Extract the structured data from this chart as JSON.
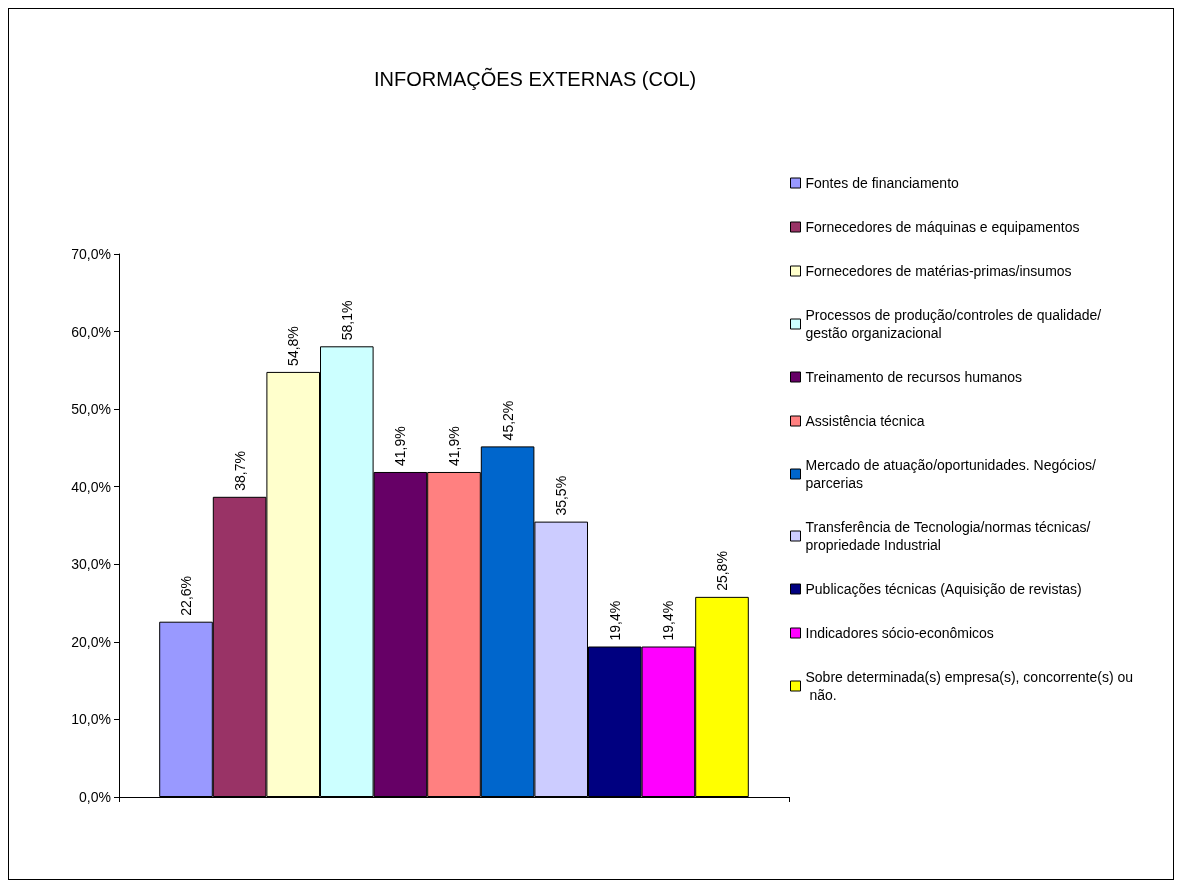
{
  "chart_data": {
    "type": "bar",
    "title": "INFORMAÇÕES EXTERNAS (COL)",
    "categories": [
      null
    ],
    "series": [
      {
        "name": "Fontes de financiamento",
        "color": "#9999ff",
        "values": [
          22.6
        ],
        "value_labels": [
          "22,6%"
        ]
      },
      {
        "name": "Fornecedores de máquinas e equipamentos",
        "color": "#993366",
        "values": [
          38.7
        ],
        "value_labels": [
          "38,7%"
        ]
      },
      {
        "name": "Fornecedores de matérias-primas/insumos",
        "color": "#ffffcc",
        "values": [
          54.8
        ],
        "value_labels": [
          "54,8%"
        ]
      },
      {
        "name": "Processos de produção/controles de qualidade/gestão organizacional",
        "color": "#ccffff",
        "values": [
          58.1
        ],
        "value_labels": [
          "58,1%"
        ]
      },
      {
        "name": "Treinamento de recursos humanos",
        "color": "#660066",
        "values": [
          41.9
        ],
        "value_labels": [
          "41,9%"
        ]
      },
      {
        "name": "Assistência técnica",
        "color": "#ff8080",
        "values": [
          41.9
        ],
        "value_labels": [
          "41,9%"
        ]
      },
      {
        "name": "Mercado de atuação/oportunidades. Negócios/parcerias",
        "color": "#0066cc",
        "values": [
          45.2
        ],
        "value_labels": [
          "45,2%"
        ]
      },
      {
        "name": "Transferência de Tecnologia/normas técnicas/propriedade Industrial",
        "color": "#ccccff",
        "values": [
          35.5
        ],
        "value_labels": [
          "35,5%"
        ]
      },
      {
        "name": "Publicações técnicas (Aquisição de revistas)",
        "color": "#000080",
        "values": [
          19.4
        ],
        "value_labels": [
          "19,4%"
        ]
      },
      {
        "name": "Indicadores sócio-econômicos",
        "color": "#ff00ff",
        "values": [
          19.4
        ],
        "value_labels": [
          "19,4%"
        ]
      },
      {
        "name": "Sobre determinada(s) empresa(s), concorrente(s) ou não.",
        "color": "#ffff00",
        "values": [
          25.8
        ],
        "value_labels": [
          "25,8%"
        ]
      }
    ],
    "ylim": [
      0,
      70
    ],
    "yticks": [
      {
        "value": 0,
        "label": "0,0%"
      },
      {
        "value": 10,
        "label": "10,0%"
      },
      {
        "value": 20,
        "label": "20,0%"
      },
      {
        "value": 30,
        "label": "30,0%"
      },
      {
        "value": 40,
        "label": "40,0%"
      },
      {
        "value": 50,
        "label": "50,0%"
      },
      {
        "value": 60,
        "label": "60,0%"
      },
      {
        "value": 70,
        "label": "70,0%"
      }
    ],
    "grid": false,
    "legend": "right"
  }
}
